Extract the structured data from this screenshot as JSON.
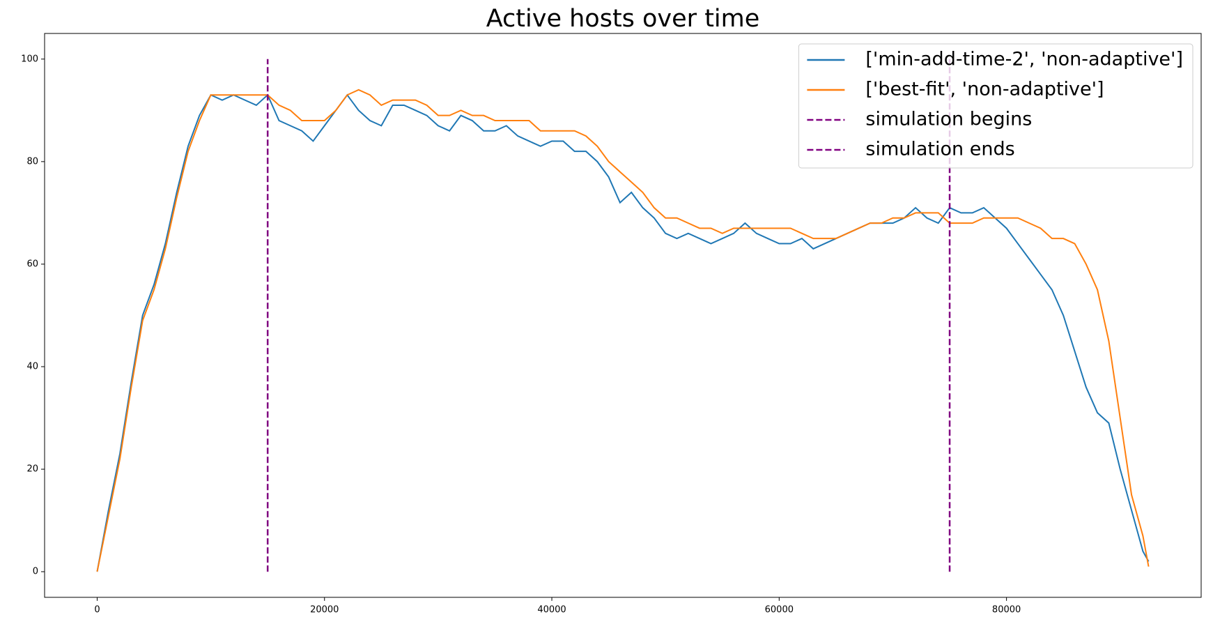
{
  "chart_data": {
    "type": "line",
    "title": "Active hosts over time",
    "x": [
      0,
      1000,
      2000,
      3000,
      4000,
      5000,
      6000,
      7000,
      8000,
      9000,
      10000,
      11000,
      12000,
      13000,
      14000,
      15000,
      16000,
      17000,
      18000,
      19000,
      20000,
      21000,
      22000,
      23000,
      24000,
      25000,
      26000,
      27000,
      28000,
      29000,
      30000,
      31000,
      32000,
      33000,
      34000,
      35000,
      36000,
      37000,
      38000,
      39000,
      40000,
      41000,
      42000,
      43000,
      44000,
      45000,
      46000,
      47000,
      48000,
      49000,
      50000,
      51000,
      52000,
      53000,
      54000,
      55000,
      56000,
      57000,
      58000,
      59000,
      60000,
      61000,
      62000,
      63000,
      64000,
      65000,
      66000,
      67000,
      68000,
      69000,
      70000,
      71000,
      72000,
      73000,
      74000,
      75000,
      76000,
      77000,
      78000,
      79000,
      80000,
      81000,
      82000,
      83000,
      84000,
      85000,
      86000,
      87000,
      88000,
      89000,
      90000,
      91000,
      92000,
      92500
    ],
    "series": [
      {
        "name": "['min-add-time-2', 'non-adaptive']",
        "color": "#1f77b4",
        "values": [
          0,
          12,
          23,
          37,
          50,
          56,
          64,
          74,
          83,
          89,
          93,
          92,
          93,
          92,
          91,
          93,
          88,
          87,
          86,
          84,
          87,
          90,
          93,
          90,
          88,
          87,
          91,
          91,
          90,
          89,
          87,
          86,
          89,
          88,
          86,
          86,
          87,
          85,
          84,
          83,
          84,
          84,
          82,
          82,
          80,
          77,
          72,
          74,
          71,
          69,
          66,
          65,
          66,
          65,
          64,
          65,
          66,
          68,
          66,
          65,
          64,
          64,
          65,
          63,
          64,
          65,
          66,
          67,
          68,
          68,
          68,
          69,
          71,
          69,
          68,
          71,
          70,
          70,
          71,
          69,
          67,
          64,
          61,
          58,
          55,
          50,
          43,
          36,
          31,
          29,
          20,
          12,
          4,
          2
        ]
      },
      {
        "name": "['best-fit', 'non-adaptive']",
        "color": "#ff7f0e",
        "values": [
          0,
          11,
          22,
          36,
          49,
          55,
          63,
          73,
          82,
          88,
          93,
          93,
          93,
          93,
          93,
          93,
          91,
          90,
          88,
          88,
          88,
          90,
          93,
          94,
          93,
          91,
          92,
          92,
          92,
          91,
          89,
          89,
          90,
          89,
          89,
          88,
          88,
          88,
          88,
          86,
          86,
          86,
          86,
          85,
          83,
          80,
          78,
          76,
          74,
          71,
          69,
          69,
          68,
          67,
          67,
          66,
          67,
          67,
          67,
          67,
          67,
          67,
          66,
          65,
          65,
          65,
          66,
          67,
          68,
          68,
          69,
          69,
          70,
          70,
          70,
          68,
          68,
          68,
          69,
          69,
          69,
          69,
          68,
          67,
          65,
          65,
          64,
          60,
          55,
          45,
          30,
          15,
          7,
          1
        ]
      }
    ],
    "vlines": [
      {
        "name": "simulation begins",
        "x": 15000,
        "y_range": [
          0,
          100
        ],
        "color": "purple"
      },
      {
        "name": "simulation ends",
        "x": 75000,
        "y_range": [
          0,
          100
        ],
        "color": "purple"
      }
    ],
    "xlim": [
      -4625,
      97125
    ],
    "ylim": [
      -5,
      105
    ],
    "xticks": [
      0,
      20000,
      40000,
      60000,
      80000
    ],
    "yticks": [
      0,
      20,
      40,
      60,
      80,
      100
    ],
    "grid": false,
    "legend": "upper right"
  }
}
